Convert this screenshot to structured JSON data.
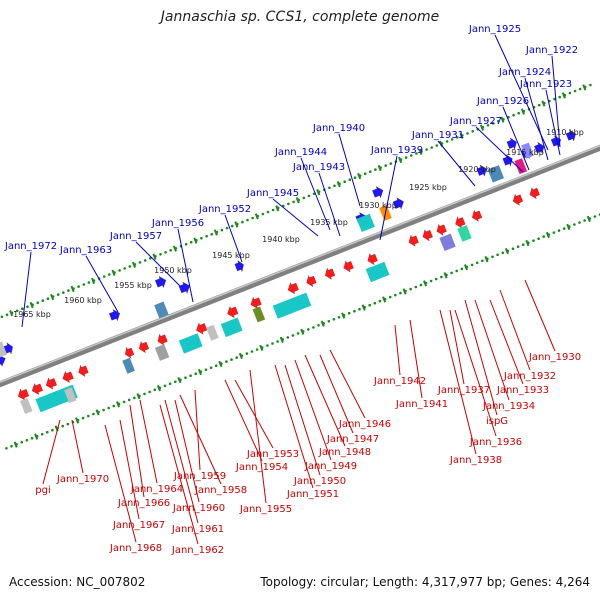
{
  "title": "Jannaschia sp. CCS1, complete genome",
  "footer": {
    "accession": "Accession: NC_007802",
    "topology": "Topology: circular; Length: 4,317,977 bp; Genes: 4,264"
  },
  "colors": {
    "forward_label": "#0000cc",
    "reverse_label": "#cc0000",
    "backbone": "#808080",
    "tick": "#1a8a1a",
    "forward_arrow": "#1a1aff",
    "reverse_arrow": "#ff1a1a"
  },
  "scale_ticks": [
    "1910 kbp",
    "1915 kbp",
    "1920 kbp",
    "1925 kbp",
    "1930 kbp",
    "1935 kbp",
    "1940 kbp",
    "1945 kbp",
    "1950 kbp",
    "1955 kbp",
    "1960 kbp",
    "1965 kbp"
  ],
  "forward_genes": [
    {
      "label": "Jann_1925"
    },
    {
      "label": "Jann_1922"
    },
    {
      "label": "Jann_1924"
    },
    {
      "label": "Jann_1923"
    },
    {
      "label": "Jann_1926"
    },
    {
      "label": "Jann_1927"
    },
    {
      "label": "Jann_1931"
    },
    {
      "label": "Jann_1940"
    },
    {
      "label": "Jann_1939"
    },
    {
      "label": "Jann_1944"
    },
    {
      "label": "Jann_1943"
    },
    {
      "label": "Jann_1945"
    },
    {
      "label": "Jann_1952"
    },
    {
      "label": "Jann_1956"
    },
    {
      "label": "Jann_1957"
    },
    {
      "label": "Jann_1963"
    },
    {
      "label": "Jann_1972"
    }
  ],
  "reverse_genes": [
    {
      "label": "Jann_1930"
    },
    {
      "label": "Jann_1932"
    },
    {
      "label": "Jann_1933"
    },
    {
      "label": "Jann_1942"
    },
    {
      "label": "Jann_1937"
    },
    {
      "label": "Jann_1941"
    },
    {
      "label": "Jann_1934"
    },
    {
      "label": "ispG"
    },
    {
      "label": "Jann_1936"
    },
    {
      "label": "Jann_1938"
    },
    {
      "label": "Jann_1946"
    },
    {
      "label": "Jann_1947"
    },
    {
      "label": "Jann_1948"
    },
    {
      "label": "Jann_1953"
    },
    {
      "label": "Jann_1949"
    },
    {
      "label": "Jann_1954"
    },
    {
      "label": "Jann_1950"
    },
    {
      "label": "Jann_1951"
    },
    {
      "label": "Jann_1959"
    },
    {
      "label": "Jann_1958"
    },
    {
      "label": "Jann_1955"
    },
    {
      "label": "Jann_1964"
    },
    {
      "label": "Jann_1960"
    },
    {
      "label": "Jann_1970"
    },
    {
      "label": "Jann_1966"
    },
    {
      "label": "pgi"
    },
    {
      "label": "Jann_1961"
    },
    {
      "label": "Jann_1967"
    },
    {
      "label": "Jann_1962"
    },
    {
      "label": "Jann_1968"
    }
  ]
}
